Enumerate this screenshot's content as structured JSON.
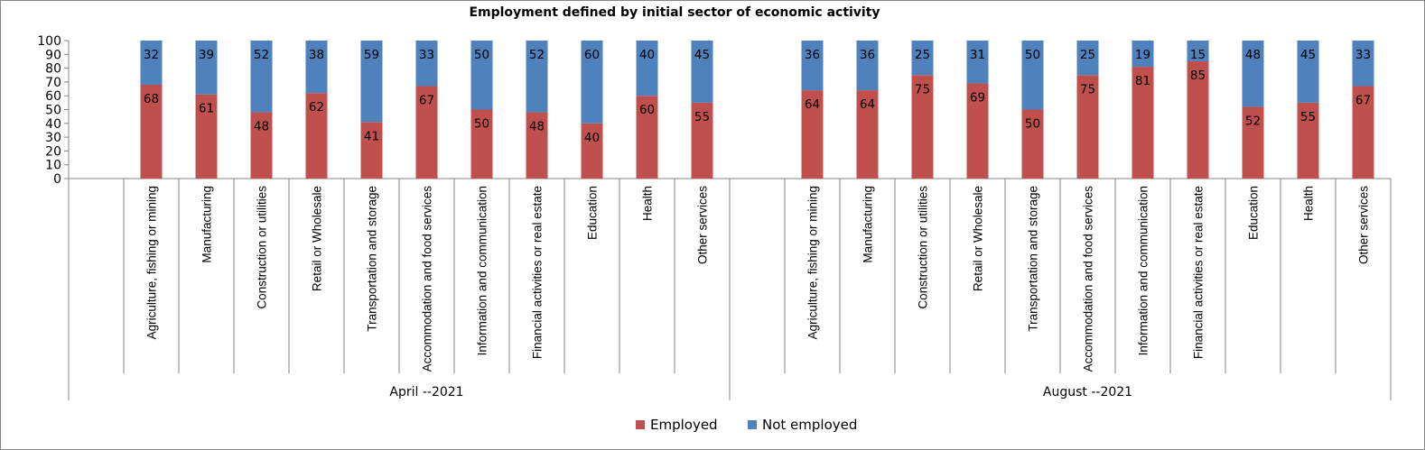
{
  "chart_data": {
    "type": "bar",
    "stacked": true,
    "title": "Employment defined by initial sector of economic activity",
    "ylim": [
      0,
      100
    ],
    "yticks": [
      0,
      10,
      20,
      30,
      40,
      50,
      60,
      70,
      80,
      90,
      100
    ],
    "groups": [
      {
        "label": "April --2021",
        "categories": [
          "Agriculture, fishing or mining",
          "Manufacturing",
          "Construction or utilities",
          "Retail or Wholesale",
          "Transportation and storage",
          "Accommodation and food services",
          "Information and communication",
          "Financial activities or real estate",
          "Education",
          "Health",
          "Other services"
        ],
        "employed": [
          68,
          61,
          48,
          62,
          41,
          67,
          50,
          48,
          40,
          60,
          55
        ],
        "not_employed": [
          32,
          39,
          52,
          38,
          59,
          33,
          50,
          52,
          60,
          40,
          45
        ]
      },
      {
        "label": "August --2021",
        "categories": [
          "Agriculture, fishing or mining",
          "Manufacturing",
          "Construction or utilities",
          "Retail or Wholesale",
          "Transportation and storage",
          "Accommodation and food services",
          "Information and communication",
          "Financial activities or real estate",
          "Education",
          "Health",
          "Other services"
        ],
        "employed": [
          64,
          64,
          75,
          69,
          50,
          75,
          81,
          85,
          52,
          55,
          67
        ],
        "not_employed": [
          36,
          36,
          25,
          31,
          50,
          25,
          19,
          15,
          48,
          45,
          33
        ]
      }
    ],
    "series": [
      {
        "name": "Employed",
        "color": "#C0504D"
      },
      {
        "name": "Not employed",
        "color": "#4F81BD"
      }
    ],
    "legend_position": "bottom",
    "grid": false
  }
}
